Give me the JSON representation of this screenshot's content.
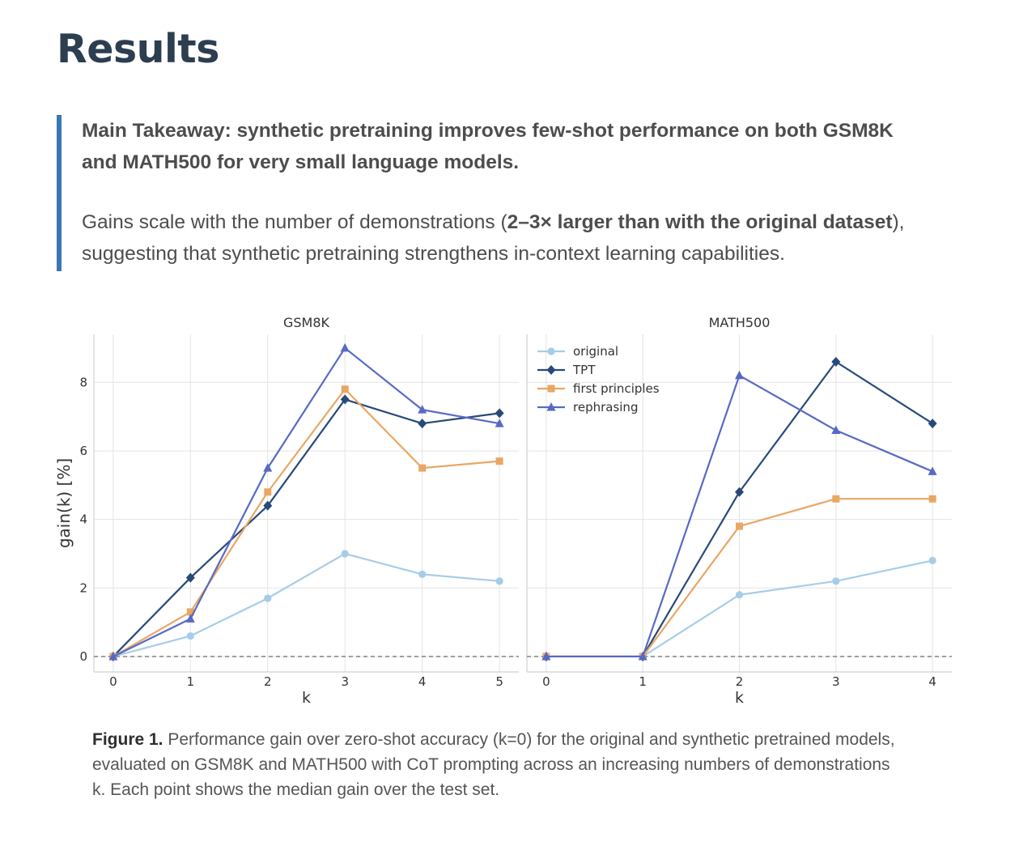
{
  "page": {
    "title": "Results",
    "takeaway": "Main Takeaway: synthetic pretraining improves few-shot performance on both GSM8K and MATH500 for very small language models.",
    "detail_pre": "Gains scale with the number of demonstrations (",
    "detail_bold": "2–3× larger than with the original dataset",
    "detail_post": "), suggesting that synthetic pretraining strengthens in-context learning capabilities.",
    "caption_label": "Figure 1.",
    "caption_text": " Performance gain over zero-shot accuracy (k=0) for the original and synthetic pretrained models, evaluated on GSM8K and MATH500 with CoT prompting across an increasing numbers of demonstrations k. Each point shows the median gain over the test set."
  },
  "colors": {
    "title": "#2c3e50",
    "callout_bar": "#3b77b4",
    "original": "#a6cde8",
    "TPT": "#274a78",
    "first principles": "#e8a765",
    "rephrasing": "#5869c4"
  },
  "chart_data": [
    {
      "type": "line",
      "title": "GSM8K",
      "xlabel": "k",
      "ylabel": "gain(k) [%]",
      "x": [
        0,
        1,
        2,
        3,
        4,
        5
      ],
      "xlim": [
        -0.25,
        5.25
      ],
      "ylim": [
        -0.45,
        9.4
      ],
      "yticks": [
        0,
        2,
        4,
        6,
        8
      ],
      "grid": true,
      "reference_line": 0,
      "series": [
        {
          "name": "original",
          "marker": "circle",
          "values": [
            0,
            0.6,
            1.7,
            3.0,
            2.4,
            2.2
          ]
        },
        {
          "name": "TPT",
          "marker": "diamond",
          "values": [
            0,
            2.3,
            4.4,
            7.5,
            6.8,
            7.1
          ]
        },
        {
          "name": "first principles",
          "marker": "square",
          "values": [
            0,
            1.3,
            4.8,
            7.8,
            5.5,
            5.7
          ]
        },
        {
          "name": "rephrasing",
          "marker": "triangle",
          "values": [
            0,
            1.1,
            5.5,
            9.0,
            7.2,
            6.8
          ]
        }
      ]
    },
    {
      "type": "line",
      "title": "MATH500",
      "xlabel": "k",
      "ylabel": "",
      "x": [
        0,
        1,
        2,
        3,
        4
      ],
      "xlim": [
        -0.2,
        4.2
      ],
      "ylim": [
        -0.45,
        9.4
      ],
      "yticks": [
        0,
        2,
        4,
        6,
        8
      ],
      "grid": true,
      "reference_line": 0,
      "legend_position": "top-left",
      "series": [
        {
          "name": "original",
          "marker": "circle",
          "values": [
            0,
            0,
            1.8,
            2.2,
            2.8
          ]
        },
        {
          "name": "TPT",
          "marker": "diamond",
          "values": [
            0,
            0,
            4.8,
            8.6,
            6.8
          ]
        },
        {
          "name": "first principles",
          "marker": "square",
          "values": [
            0,
            0,
            3.8,
            4.6,
            4.6
          ]
        },
        {
          "name": "rephrasing",
          "marker": "triangle",
          "values": [
            0,
            0,
            8.2,
            6.6,
            5.4
          ]
        }
      ]
    }
  ]
}
